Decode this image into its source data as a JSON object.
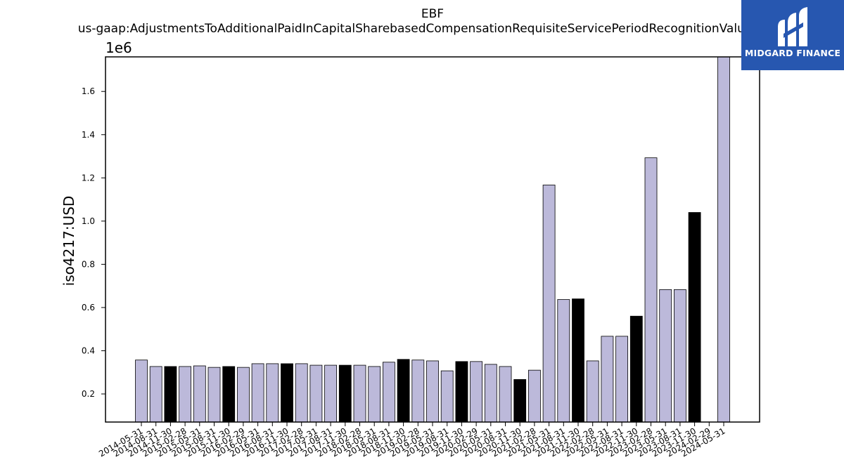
{
  "chart_data": {
    "type": "bar",
    "title": "EBF",
    "subtitle": "us-gaap:AdjustmentsToAdditionalPaidInCapitalSharebasedCompensationRequisiteServicePeriodRecognitionValue",
    "ylabel": "iso4217:USD",
    "xlabel": "",
    "offset_label": "1e6",
    "ylim": [
      0.07,
      1.76
    ],
    "yticks": [
      0.2,
      0.4,
      0.6,
      0.8,
      1.0,
      1.2,
      1.4,
      1.6
    ],
    "ytick_labels": [
      "0.2",
      "0.4",
      "0.6",
      "0.8",
      "1.0",
      "1.2",
      "1.4",
      "1.6"
    ],
    "categories": [
      "2014-05-31",
      "2014-08-31",
      "2014-11-30",
      "2015-02-28",
      "2015-05-31",
      "2015-08-31",
      "2015-11-30",
      "2016-02-29",
      "2016-05-31",
      "2016-08-31",
      "2016-11-30",
      "2017-02-28",
      "2017-05-31",
      "2017-08-31",
      "2017-11-30",
      "2018-02-28",
      "2018-05-31",
      "2018-08-31",
      "2018-11-30",
      "2019-02-28",
      "2019-05-31",
      "2019-08-31",
      "2019-11-30",
      "2020-02-29",
      "2020-05-31",
      "2020-08-31",
      "2020-11-30",
      "2021-02-28",
      "2021-05-31",
      "2021-08-31",
      "2021-11-30",
      "2022-02-28",
      "2022-05-31",
      "2022-08-31",
      "2022-11-30",
      "2023-02-28",
      "2023-05-31",
      "2023-08-31",
      "2023-11-30",
      "2024-02-29",
      "2024-05-31"
    ],
    "values": [
      0.357,
      0.327,
      0.327,
      0.327,
      0.33,
      0.323,
      0.327,
      0.323,
      0.34,
      0.34,
      0.34,
      0.34,
      0.333,
      0.333,
      0.333,
      0.333,
      0.327,
      0.347,
      0.36,
      0.357,
      0.353,
      0.307,
      0.35,
      0.35,
      0.337,
      0.327,
      0.267,
      0.31,
      1.167,
      0.637,
      0.64,
      0.353,
      0.467,
      0.467,
      0.56,
      1.293,
      0.683,
      0.683,
      1.04,
      null,
      1.76
    ],
    "highlighted": [
      false,
      false,
      true,
      false,
      false,
      false,
      true,
      false,
      false,
      false,
      true,
      false,
      false,
      false,
      true,
      false,
      false,
      false,
      true,
      false,
      false,
      false,
      true,
      false,
      false,
      false,
      true,
      false,
      false,
      false,
      true,
      false,
      false,
      false,
      true,
      false,
      false,
      false,
      true,
      false,
      false
    ],
    "colors": {
      "bar": "#bcb9da",
      "highlight": "#000000",
      "edge": "#000000"
    },
    "grid": false,
    "legend": "none"
  },
  "logo": {
    "text": "MIDGARD FINANCE",
    "background": "#2757b0"
  }
}
